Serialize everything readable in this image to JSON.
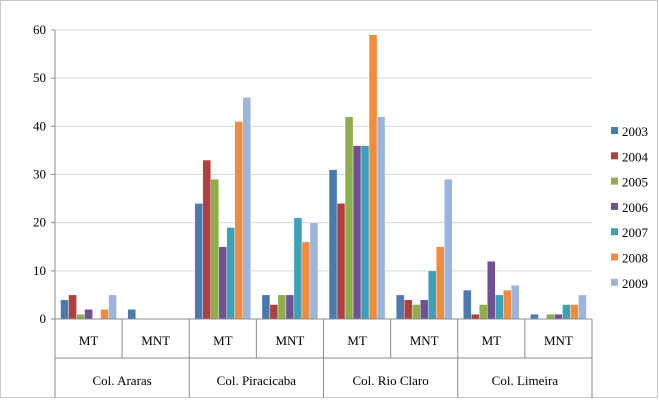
{
  "chart_data": {
    "type": "bar",
    "title": "",
    "xlabel": "",
    "ylabel": "",
    "ylim": [
      0,
      60
    ],
    "yticks": [
      0,
      10,
      20,
      30,
      40,
      50,
      60
    ],
    "grid": true,
    "legend_position": "right",
    "groups": [
      {
        "label": "Col. Araras",
        "subcategories": [
          "MT",
          "MNT"
        ]
      },
      {
        "label": "Col. Piracicaba",
        "subcategories": [
          "MT",
          "MNT"
        ]
      },
      {
        "label": "Col. Rio Claro",
        "subcategories": [
          "MT",
          "MNT"
        ]
      },
      {
        "label": "Col. Limeira",
        "subcategories": [
          "MT",
          "MNT"
        ]
      }
    ],
    "categories": [
      "MT",
      "MNT",
      "MT",
      "MNT",
      "MT",
      "MNT",
      "MT",
      "MNT"
    ],
    "series": [
      {
        "name": "2003",
        "color": "#4a7ab0",
        "values": [
          4,
          2,
          24,
          5,
          31,
          5,
          6,
          1
        ]
      },
      {
        "name": "2004",
        "color": "#b0403d",
        "values": [
          5,
          0,
          33,
          3,
          24,
          4,
          1,
          0
        ]
      },
      {
        "name": "2005",
        "color": "#8dae4a",
        "values": [
          1,
          0,
          29,
          5,
          42,
          3,
          3,
          1
        ]
      },
      {
        "name": "2006",
        "color": "#6e5292",
        "values": [
          2,
          0,
          15,
          5,
          36,
          4,
          12,
          1
        ]
      },
      {
        "name": "2007",
        "color": "#3ea0b8",
        "values": [
          0,
          0,
          19,
          21,
          36,
          10,
          5,
          3
        ]
      },
      {
        "name": "2008",
        "color": "#f08c3c",
        "values": [
          2,
          0,
          41,
          16,
          59,
          15,
          6,
          3
        ]
      },
      {
        "name": "2009",
        "color": "#9db4dc",
        "values": [
          5,
          0,
          46,
          20,
          42,
          29,
          7,
          5
        ]
      }
    ]
  }
}
